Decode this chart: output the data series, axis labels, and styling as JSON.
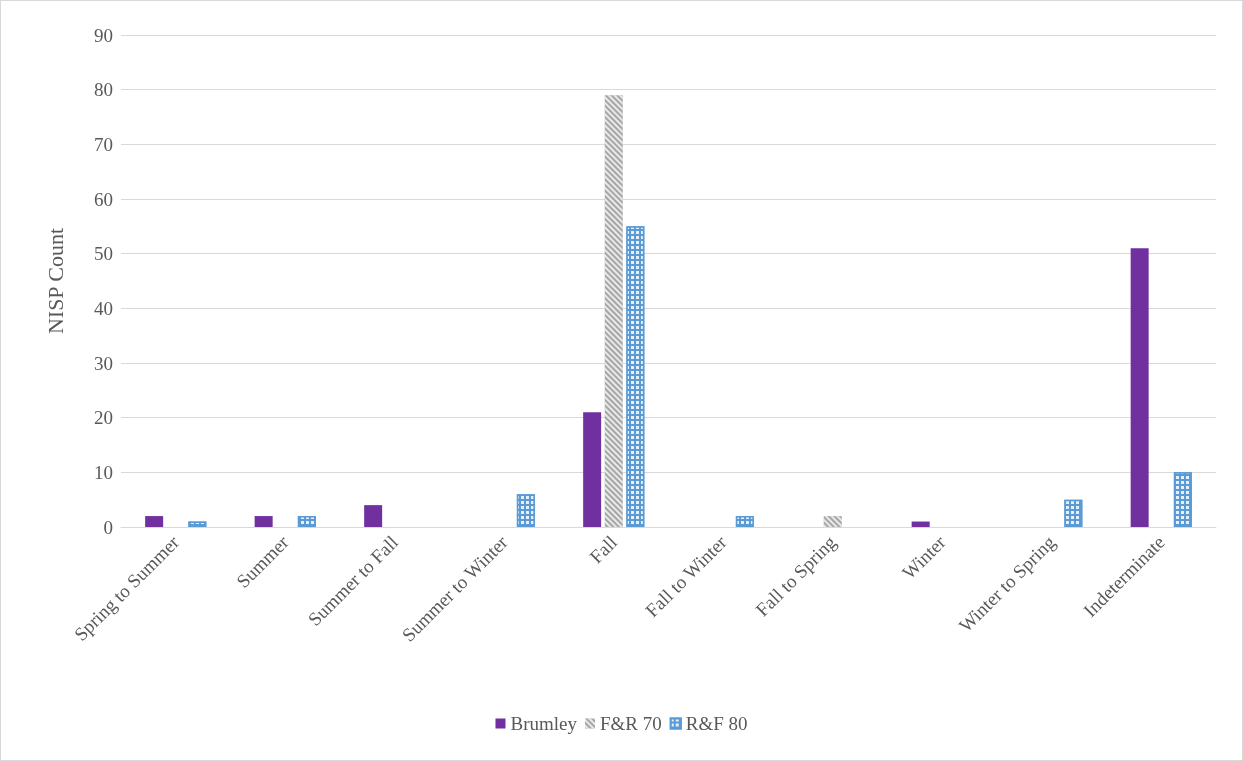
{
  "chart_data": {
    "type": "bar",
    "ylabel": "NISP Count",
    "categories": [
      "Spring to Summer",
      "Summer",
      "Summer to Fall",
      "Summer to Winter",
      "Fall",
      "Fall to Winter",
      "Fall to Spring",
      "Winter",
      "Winter to Spring",
      "Indeterminate"
    ],
    "series": [
      {
        "name": "Brumley",
        "color": "#7030a0",
        "values": [
          2,
          2,
          4,
          null,
          21,
          null,
          null,
          1,
          null,
          51
        ]
      },
      {
        "name": "F&R 70",
        "color": "#a6a6a6",
        "values": [
          null,
          null,
          null,
          null,
          79,
          null,
          2,
          null,
          null,
          null
        ]
      },
      {
        "name": "R&F 80",
        "color": "#5b9bd5",
        "values": [
          1,
          2,
          null,
          6,
          55,
          2,
          null,
          null,
          5,
          10
        ]
      }
    ],
    "ylim": [
      0,
      90
    ],
    "yticks": [
      0,
      10,
      20,
      30,
      40,
      50,
      60,
      70,
      80,
      90
    ],
    "grid": "y",
    "legend": "bottom"
  }
}
